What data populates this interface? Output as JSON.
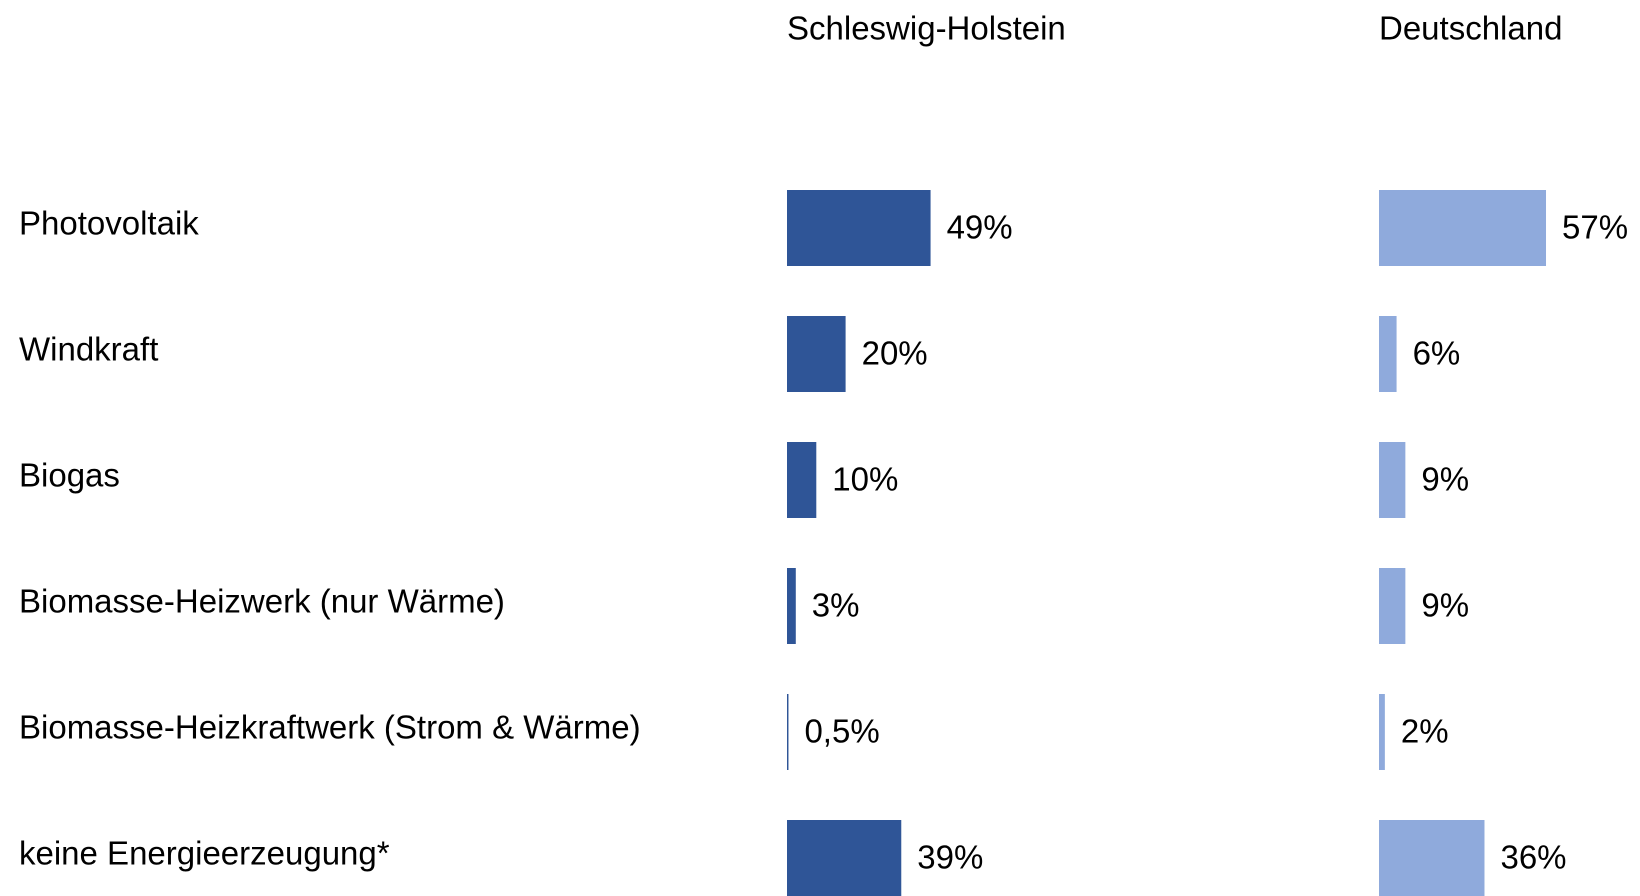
{
  "chart_data": {
    "type": "bar",
    "orientation": "horizontal",
    "categories": [
      "Photovoltaik",
      "Windkraft",
      "Biogas",
      "Biomasse-Heizwerk (nur Wärme)",
      "Biomasse-Heizkraftwerk (Strom & Wärme)",
      "keine Energieerzeugung*"
    ],
    "series": [
      {
        "name": "Schleswig-Holstein",
        "color": "#2f5597",
        "values": [
          49,
          20,
          10,
          3,
          0.5,
          39
        ],
        "value_labels": [
          "49%",
          "20%",
          "10%",
          "3%",
          "0,5%",
          "39%"
        ]
      },
      {
        "name": "Deutschland",
        "color": "#8faadc",
        "values": [
          57,
          6,
          9,
          9,
          2,
          36
        ],
        "value_labels": [
          "57%",
          "6%",
          "9%",
          "9%",
          "2%",
          "36%"
        ]
      }
    ]
  }
}
